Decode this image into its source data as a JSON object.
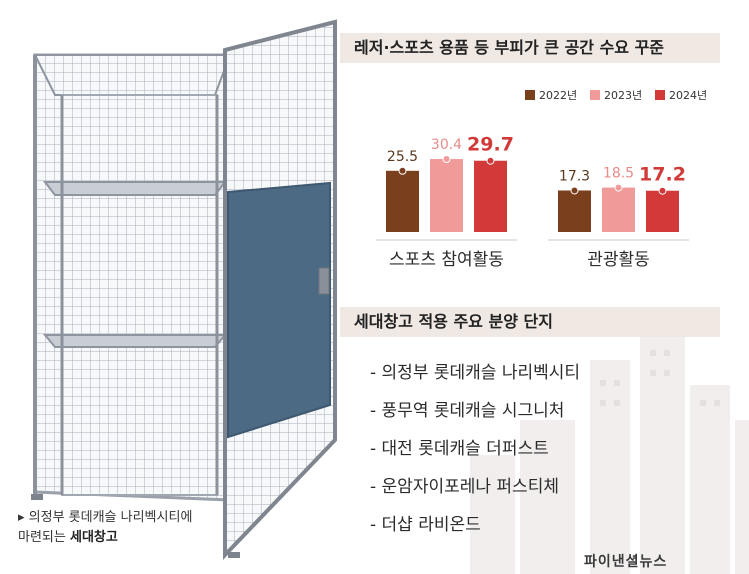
{
  "chart_header": "레저·스포츠 용품 등 부피가 큰 공간 수요 꾸준",
  "chart_data": {
    "type": "bar",
    "categories": [
      "스포츠 참여활동",
      "관광활동"
    ],
    "series": [
      {
        "name": "2022년",
        "color": "#7a3f1d",
        "values": [
          25.5,
          17.3
        ]
      },
      {
        "name": "2023년",
        "color": "#f19a9a",
        "values": [
          30.4,
          18.5
        ]
      },
      {
        "name": "2024년",
        "color": "#d23a3a",
        "values": [
          29.7,
          17.2
        ]
      }
    ],
    "value_labels": [
      [
        "25.5",
        "30.4",
        "29.7"
      ],
      [
        "17.3",
        "18.5",
        "17.2"
      ]
    ],
    "ylim": [
      0,
      35
    ]
  },
  "list_header": "세대창고 적용 주요 분양 단지",
  "list_items": [
    "- 의정부 롯데캐슬 나리벡시티",
    "- 풍무역 롯데캐슬 시그니처",
    "- 대전 롯데캐슬 더퍼스트",
    "- 운암자이포레나 퍼스티체",
    "- 더샵 라비온드"
  ],
  "caption": {
    "line1": "▸ 의정부 롯데캐슬 나리벡시티에",
    "line2_prefix": "마련되는 ",
    "line2_bold": "세대창고"
  },
  "logo": "파이낸셜뉴스"
}
